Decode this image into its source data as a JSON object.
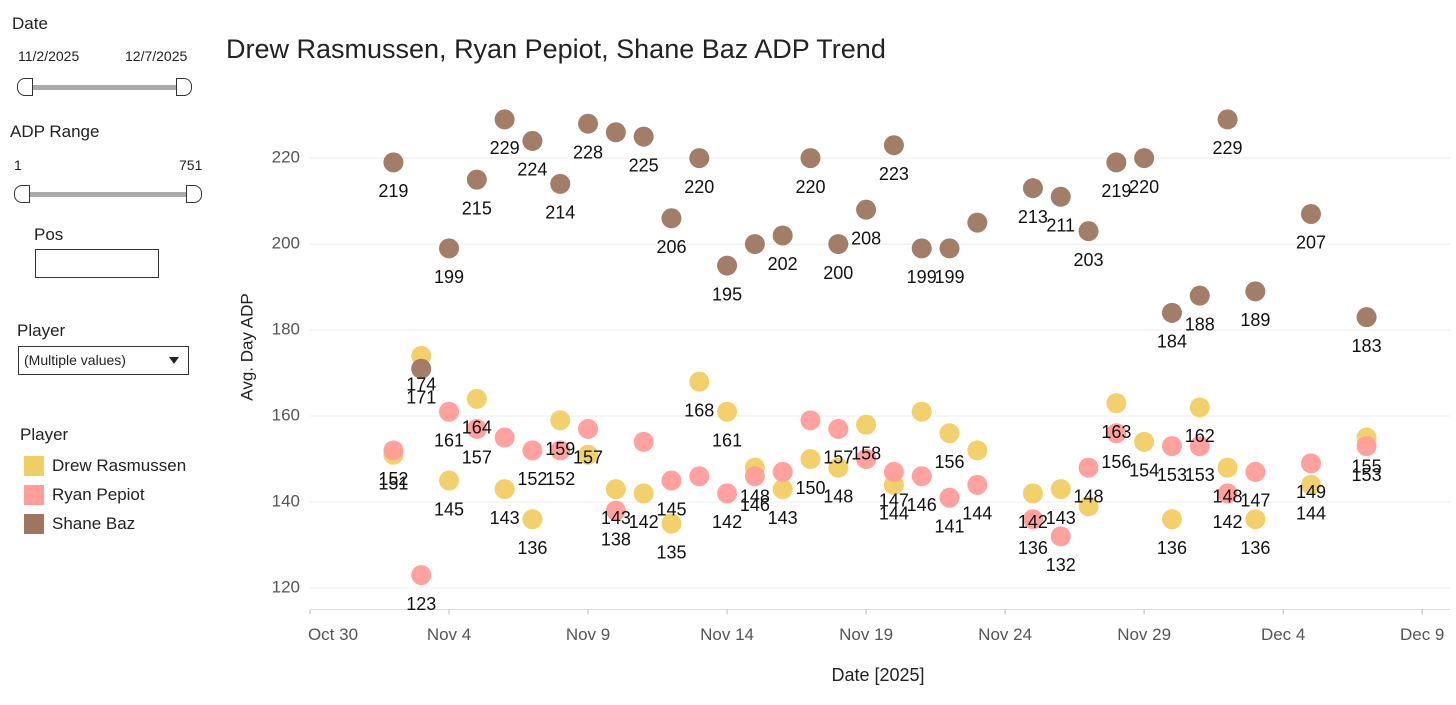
{
  "sidebar": {
    "date": {
      "label": "Date",
      "start": "11/2/2025",
      "end": "12/7/2025"
    },
    "adp": {
      "label": "ADP Range",
      "min": "1",
      "max": "751"
    },
    "pos": {
      "label": "Pos"
    },
    "player": {
      "label": "Player",
      "value": "(Multiple values)"
    },
    "legend_title": "Player"
  },
  "chart_data": {
    "type": "scatter",
    "title": "Drew Rasmussen, Ryan Pepiot, Shane Baz ADP Trend",
    "x_label": "Date [2025]",
    "y_label": "Avg. Day ADP",
    "x": [
      "2025-11-02",
      "2025-11-03",
      "2025-11-04",
      "2025-11-05",
      "2025-11-06",
      "2025-11-07",
      "2025-11-08",
      "2025-11-09",
      "2025-11-10",
      "2025-11-11",
      "2025-11-12",
      "2025-11-13",
      "2025-11-14",
      "2025-11-15",
      "2025-11-16",
      "2025-11-17",
      "2025-11-18",
      "2025-11-19",
      "2025-11-20",
      "2025-11-21",
      "2025-11-22",
      "2025-11-23",
      "2025-11-25",
      "2025-11-26",
      "2025-11-27",
      "2025-11-28",
      "2025-11-29",
      "2025-11-30",
      "2025-12-01",
      "2025-12-02",
      "2025-12-03",
      "2025-12-05",
      "2025-12-07"
    ],
    "xlim": [
      "2025-10-30",
      "2025-12-10"
    ],
    "xticks": [
      {
        "value": "2025-10-30",
        "label": "Oct 30"
      },
      {
        "value": "2025-11-04",
        "label": "Nov 4"
      },
      {
        "value": "2025-11-09",
        "label": "Nov 9"
      },
      {
        "value": "2025-11-14",
        "label": "Nov 14"
      },
      {
        "value": "2025-11-19",
        "label": "Nov 19"
      },
      {
        "value": "2025-11-24",
        "label": "Nov 24"
      },
      {
        "value": "2025-11-29",
        "label": "Nov 29"
      },
      {
        "value": "2025-12-04",
        "label": "Dec 4"
      },
      {
        "value": "2025-12-09",
        "label": "Dec 9"
      }
    ],
    "ylim": [
      115,
      237
    ],
    "yticks": [
      120,
      140,
      160,
      180,
      200,
      220
    ],
    "grid": true,
    "series": [
      {
        "name": "Drew Rasmussen",
        "color": "#f1ce63",
        "values": [
          151,
          174,
          145,
          164,
          143,
          136,
          159,
          151,
          143,
          142,
          135,
          168,
          161,
          148,
          143,
          150,
          148,
          158,
          144,
          161,
          156,
          152,
          142,
          143,
          139,
          163,
          154,
          136,
          162,
          148,
          136,
          144,
          155
        ],
        "value_labels": [
          "151",
          "174",
          "145",
          "164",
          "143",
          "136",
          "159",
          null,
          "143",
          "142",
          "135",
          "168",
          "161",
          "148",
          "143",
          "150",
          "148",
          "158",
          "144",
          null,
          "156",
          null,
          "142",
          "143",
          null,
          "163",
          "154",
          "136",
          "162",
          "148",
          "136",
          "144",
          "155"
        ]
      },
      {
        "name": "Ryan Pepiot",
        "color": "#ff9d9a",
        "values": [
          152,
          123,
          161,
          157,
          155,
          152,
          152,
          157,
          138,
          154,
          145,
          146,
          142,
          146,
          147,
          159,
          157,
          150,
          147,
          146,
          141,
          144,
          136,
          132,
          148,
          156,
          null,
          153,
          153,
          142,
          147,
          149,
          153
        ],
        "value_labels": [
          "152",
          "123",
          "161",
          "157",
          null,
          "152",
          "152",
          "157",
          "138",
          null,
          "145",
          null,
          "142",
          "146",
          null,
          null,
          "157",
          null,
          "147",
          "146",
          "141",
          "144",
          "136",
          "132",
          "148",
          "156",
          null,
          "153",
          "153",
          "142",
          "147",
          "149",
          "153"
        ]
      },
      {
        "name": "Shane Baz",
        "color": "#9d7660",
        "values": [
          219,
          171,
          199,
          215,
          229,
          224,
          214,
          228,
          226,
          225,
          206,
          220,
          195,
          200,
          202,
          220,
          200,
          208,
          223,
          199,
          199,
          205,
          213,
          211,
          203,
          219,
          220,
          184,
          188,
          229,
          189,
          207,
          183
        ],
        "value_labels": [
          "219",
          "171",
          "199",
          "215",
          "229",
          "224",
          "214",
          "228",
          null,
          "225",
          "206",
          "220",
          "195",
          null,
          "202",
          "220",
          "200",
          "208",
          "223",
          "199",
          "199",
          null,
          "213",
          "211",
          "203",
          "219",
          "220",
          "184",
          "188",
          "229",
          "189",
          "207",
          "183"
        ]
      }
    ]
  }
}
